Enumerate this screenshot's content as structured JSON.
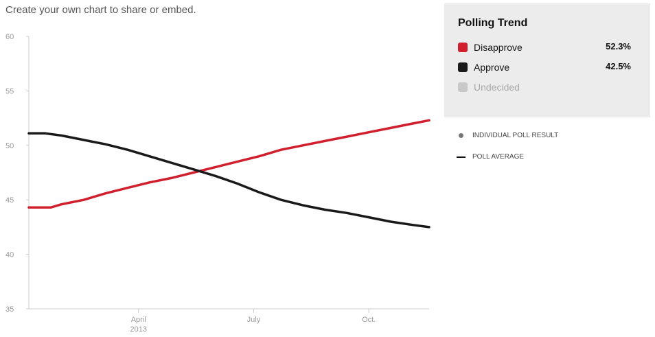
{
  "intro": {
    "text": "Create your own chart to share or embed."
  },
  "panel": {
    "title": "Polling Trend",
    "items": [
      {
        "label": "Disapprove",
        "value": "52.3%",
        "color": "#d0202e"
      },
      {
        "label": "Approve",
        "value": "42.5%",
        "color": "#1a1a1a"
      },
      {
        "label": "Undecided",
        "value": "",
        "color": "#c8c8c8",
        "muted": true
      }
    ]
  },
  "key": {
    "poll_result_label": "INDIVIDUAL POLL RESULT",
    "poll_average_label": "POLL AVERAGE",
    "dot_icon": "dot-icon",
    "line_icon": "line-icon"
  },
  "chart_data": {
    "type": "line",
    "ylim": [
      35,
      60
    ],
    "yticks": [
      35,
      40,
      45,
      50,
      55,
      60
    ],
    "xlim": [
      0,
      365
    ],
    "xticks": [
      {
        "x": 100,
        "label": "April",
        "sublabel": "2013"
      },
      {
        "x": 205,
        "label": "July",
        "sublabel": ""
      },
      {
        "x": 310,
        "label": "Oct.",
        "sublabel": ""
      }
    ],
    "series": [
      {
        "name": "Disapprove",
        "color": "#d0202e",
        "points": [
          [
            0,
            44.3
          ],
          [
            20,
            44.3
          ],
          [
            30,
            44.6
          ],
          [
            50,
            45.0
          ],
          [
            70,
            45.6
          ],
          [
            90,
            46.1
          ],
          [
            110,
            46.6
          ],
          [
            130,
            47.0
          ],
          [
            150,
            47.5
          ],
          [
            170,
            48.0
          ],
          [
            190,
            48.5
          ],
          [
            210,
            49.0
          ],
          [
            230,
            49.6
          ],
          [
            250,
            50.0
          ],
          [
            270,
            50.4
          ],
          [
            290,
            50.8
          ],
          [
            310,
            51.2
          ],
          [
            330,
            51.6
          ],
          [
            350,
            52.0
          ],
          [
            365,
            52.3
          ]
        ]
      },
      {
        "name": "Approve",
        "color": "#1a1a1a",
        "points": [
          [
            0,
            51.1
          ],
          [
            15,
            51.1
          ],
          [
            30,
            50.9
          ],
          [
            50,
            50.5
          ],
          [
            70,
            50.1
          ],
          [
            90,
            49.6
          ],
          [
            110,
            49.0
          ],
          [
            130,
            48.4
          ],
          [
            150,
            47.8
          ],
          [
            170,
            47.2
          ],
          [
            190,
            46.5
          ],
          [
            210,
            45.7
          ],
          [
            230,
            45.0
          ],
          [
            250,
            44.5
          ],
          [
            270,
            44.1
          ],
          [
            290,
            43.8
          ],
          [
            310,
            43.4
          ],
          [
            330,
            43.0
          ],
          [
            350,
            42.7
          ],
          [
            365,
            42.5
          ]
        ]
      }
    ]
  }
}
